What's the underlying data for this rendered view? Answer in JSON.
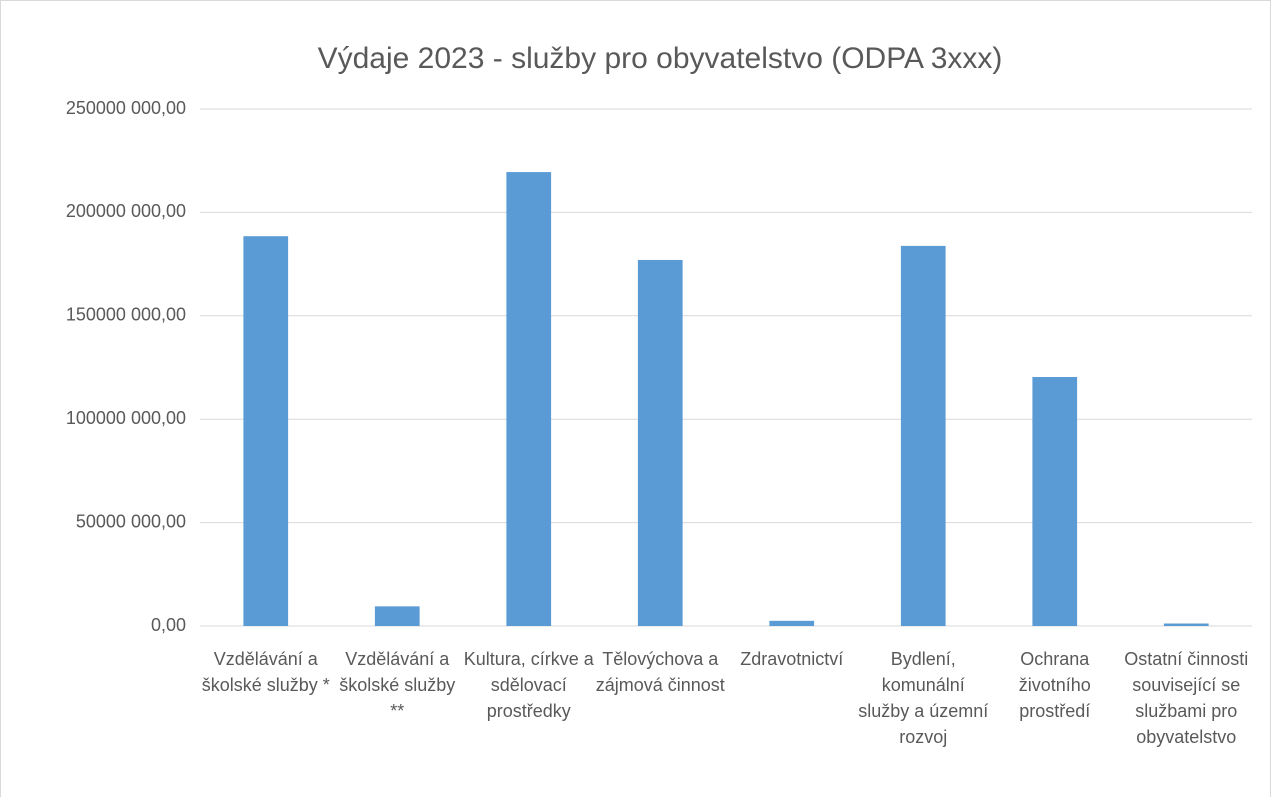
{
  "chart_data": {
    "type": "bar",
    "title": "Výdaje 2023 - služby pro obyvatelstvo (ODPA 3xxx)",
    "categories": [
      "Vzdělávání a školské služby *",
      "Vzdělávání a školské služby **",
      "Kultura, církve a sdělovací prostředky",
      "Tělovýchova a zájmová činnost",
      "Zdravotnictví",
      "Bydlení, komunální služby a územní rozvoj",
      "Ochrana životního prostředí",
      "Ostatní činnosti související se službami pro obyvatelstvo"
    ],
    "values": [
      188500000,
      9500000,
      219500000,
      177000000,
      2500000,
      183800000,
      120400000,
      1200000
    ],
    "color": "#5b9bd5",
    "ylim": [
      0,
      250000000
    ],
    "yticks": [
      {
        "value": 0,
        "label": "0,00"
      },
      {
        "value": 50000000,
        "label": "50000 000,00"
      },
      {
        "value": 100000000,
        "label": "100000 000,00"
      },
      {
        "value": 150000000,
        "label": "150000 000,00"
      },
      {
        "value": 200000000,
        "label": "200000 000,00"
      },
      {
        "value": 250000000,
        "label": "250000 000,00"
      }
    ],
    "grid": true
  }
}
